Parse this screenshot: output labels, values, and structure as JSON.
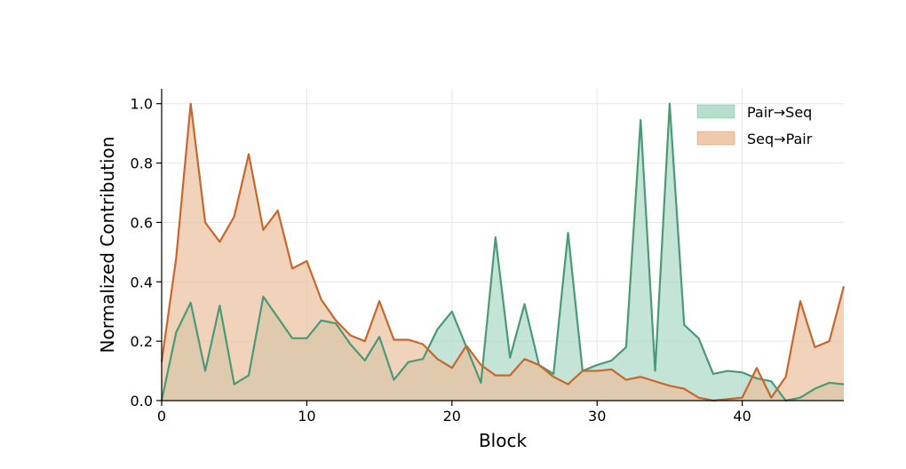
{
  "chart_data": {
    "type": "area",
    "title": "",
    "xlabel": "Block",
    "ylabel": "Normalized Contribution",
    "xlim": [
      0,
      47
    ],
    "ylim": [
      0,
      1.05
    ],
    "xticks": [
      0,
      10,
      20,
      30,
      40
    ],
    "yticks": [
      0.0,
      0.2,
      0.4,
      0.6,
      0.8,
      1.0
    ],
    "xtick_labels": [
      "0",
      "10",
      "20",
      "30",
      "40"
    ],
    "ytick_labels": [
      "0.0",
      "0.2",
      "0.4",
      "0.6",
      "0.8",
      "1.0"
    ],
    "grid": true,
    "legend_position": "top-right",
    "x": [
      0,
      1,
      2,
      3,
      4,
      5,
      6,
      7,
      8,
      9,
      10,
      11,
      12,
      13,
      14,
      15,
      16,
      17,
      18,
      19,
      20,
      21,
      22,
      23,
      24,
      25,
      26,
      27,
      28,
      29,
      30,
      31,
      32,
      33,
      34,
      35,
      36,
      37,
      38,
      39,
      40,
      41,
      42,
      43,
      44,
      45,
      46,
      47
    ],
    "series": [
      {
        "name": "Pair→Seq",
        "color": "#4a9a78",
        "fill": "#a9d8c6",
        "values": [
          0.0,
          0.23,
          0.33,
          0.1,
          0.32,
          0.055,
          0.085,
          0.35,
          0.28,
          0.21,
          0.21,
          0.27,
          0.26,
          0.19,
          0.135,
          0.215,
          0.07,
          0.13,
          0.14,
          0.24,
          0.3,
          0.18,
          0.06,
          0.55,
          0.145,
          0.325,
          0.12,
          0.09,
          0.565,
          0.1,
          0.12,
          0.135,
          0.18,
          0.945,
          0.1,
          1.0,
          0.255,
          0.21,
          0.09,
          0.1,
          0.095,
          0.075,
          0.065,
          0.0,
          0.01,
          0.04,
          0.06,
          0.055
        ]
      },
      {
        "name": "Seq→Pair",
        "color": "#c8672c",
        "fill": "#ebbf9c",
        "values": [
          0.13,
          0.48,
          1.0,
          0.6,
          0.535,
          0.62,
          0.83,
          0.575,
          0.64,
          0.445,
          0.47,
          0.34,
          0.27,
          0.22,
          0.2,
          0.335,
          0.205,
          0.205,
          0.19,
          0.14,
          0.11,
          0.185,
          0.12,
          0.085,
          0.085,
          0.14,
          0.12,
          0.08,
          0.055,
          0.1,
          0.1,
          0.105,
          0.07,
          0.08,
          0.065,
          0.05,
          0.04,
          0.01,
          0.0,
          0.005,
          0.01,
          0.11,
          0.01,
          0.08,
          0.335,
          0.18,
          0.2,
          0.385
        ]
      }
    ]
  }
}
